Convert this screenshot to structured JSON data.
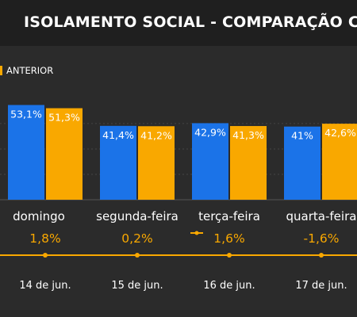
{
  "header": {
    "title": "ISOLAMENTO SOCIAL - COMPARAÇÃO COM"
  },
  "colors": {
    "current": "#1b73e8",
    "previous": "#f9a800",
    "background": "#2b2b2b",
    "header": "#1f1f1f"
  },
  "legend": {
    "label": "ANTERIOR"
  },
  "chart_data": {
    "type": "bar",
    "categories": [
      "domingo",
      "segunda-feira",
      "terça-feira",
      "quarta-feira"
    ],
    "series": [
      {
        "values": [
          53.1,
          41.4,
          42.9,
          41.0
        ],
        "labels": [
          "53,1%",
          "41,4%",
          "42,9%",
          "41%"
        ]
      },
      {
        "name": "ANTERIOR",
        "values": [
          51.3,
          41.2,
          41.3,
          42.6
        ],
        "labels": [
          "51,3%",
          "41,2%",
          "41,3%",
          "42,6%"
        ]
      }
    ],
    "difference": {
      "values": [
        1.8,
        0.2,
        1.6,
        -1.6
      ],
      "labels": [
        "1,8%",
        "0,2%",
        "1,6%",
        "-1,6%"
      ]
    },
    "dates": [
      "14 de jun.",
      "15 de jun.",
      "16 de jun.",
      "17 de jun."
    ],
    "grid": true
  }
}
